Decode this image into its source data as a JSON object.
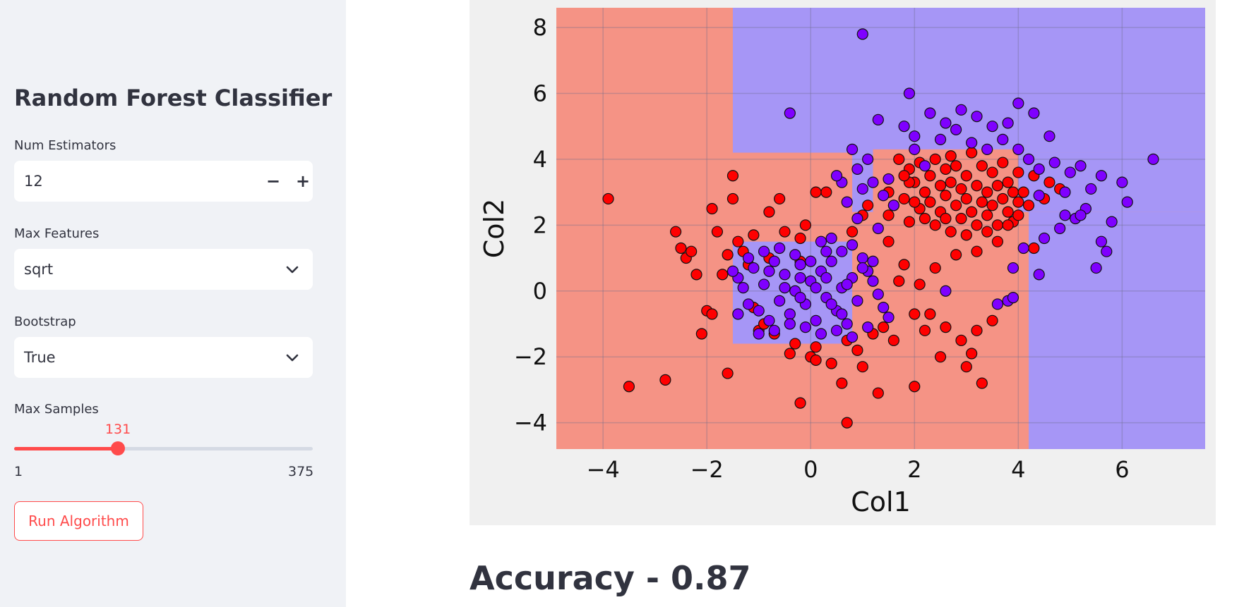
{
  "sidebar": {
    "title": "Random Forest Classifier",
    "num_estimators": {
      "label": "Num Estimators",
      "value": "12",
      "decrement": "−",
      "increment": "+"
    },
    "max_features": {
      "label": "Max Features",
      "value": "sqrt"
    },
    "bootstrap": {
      "label": "Bootstrap",
      "value": "True"
    },
    "max_samples": {
      "label": "Max Samples",
      "value": 131,
      "value_label": "131",
      "min": 1,
      "min_label": "1",
      "max": 375,
      "max_label": "375"
    },
    "run_button": "Run Algorithm"
  },
  "accuracy_text": "Accuracy - 0.87",
  "colors": {
    "accent": "#ff4b4b",
    "region_red": "#f59385",
    "region_blue": "#a696f6",
    "point_red": "#ff0000",
    "point_blue": "#7f00ff",
    "chart_bg": "#f0f0f0"
  },
  "chart_data": {
    "type": "scatter",
    "title": "",
    "xlabel": "Col1",
    "ylabel": "Col2",
    "xlim": [
      -4.9,
      7.6
    ],
    "ylim": [
      -4.8,
      8.6
    ],
    "xticks": [
      -4,
      -2,
      0,
      2,
      4,
      6
    ],
    "xtick_labels": [
      "−4",
      "−2",
      "0",
      "2",
      "4",
      "6"
    ],
    "yticks": [
      -4,
      -2,
      0,
      2,
      4,
      6,
      8
    ],
    "ytick_labels": [
      "−4",
      "−2",
      "0",
      "2",
      "4",
      "6",
      "8"
    ],
    "grid": true,
    "decision_regions": [
      {
        "class": "blue",
        "x": [
          -1.5,
          7.6
        ],
        "y": [
          4.2,
          8.6
        ]
      },
      {
        "class": "blue",
        "x": [
          0.8,
          7.6
        ],
        "y": [
          2.4,
          4.2
        ]
      },
      {
        "class": "blue",
        "x": [
          4.2,
          7.6
        ],
        "y": [
          -4.8,
          2.4
        ]
      },
      {
        "class": "blue",
        "x": [
          -1.5,
          0.8
        ],
        "y": [
          -1.6,
          1.5
        ]
      },
      {
        "class": "red",
        "x": [
          1.2,
          4.0
        ],
        "y": [
          2.0,
          4.3
        ]
      }
    ],
    "series": [
      {
        "name": "",
        "color": "red",
        "points": [
          [
            -3.9,
            2.8
          ],
          [
            -3.5,
            -2.9
          ],
          [
            -2.8,
            -2.7
          ],
          [
            -2.6,
            1.8
          ],
          [
            -2.5,
            1.3
          ],
          [
            -2.4,
            1.0
          ],
          [
            -2.3,
            1.2
          ],
          [
            -2.2,
            0.5
          ],
          [
            -2.0,
            -0.6
          ],
          [
            -2.1,
            -1.3
          ],
          [
            -1.9,
            -0.7
          ],
          [
            -1.9,
            2.5
          ],
          [
            -1.8,
            1.8
          ],
          [
            -1.7,
            0.5
          ],
          [
            -1.6,
            1.1
          ],
          [
            -1.6,
            -2.5
          ],
          [
            -1.5,
            3.5
          ],
          [
            -1.5,
            2.8
          ],
          [
            -1.4,
            1.5
          ],
          [
            -1.3,
            1.2
          ],
          [
            -1.2,
            0.8
          ],
          [
            -1.1,
            -0.5
          ],
          [
            -1.1,
            1.7
          ],
          [
            -1.0,
            -1.2
          ],
          [
            -0.9,
            -1.0
          ],
          [
            -0.8,
            2.4
          ],
          [
            -0.8,
            1.0
          ],
          [
            -0.7,
            -1.3
          ],
          [
            -0.6,
            2.8
          ],
          [
            -0.5,
            1.8
          ],
          [
            -0.4,
            -1.9
          ],
          [
            -0.3,
            -1.6
          ],
          [
            -0.2,
            1.6
          ],
          [
            -0.2,
            0.9
          ],
          [
            -0.1,
            2.0
          ],
          [
            0.0,
            -2.0
          ],
          [
            0.1,
            -2.1
          ],
          [
            0.1,
            -1.7
          ],
          [
            0.3,
            3.0
          ],
          [
            0.4,
            -2.2
          ],
          [
            0.6,
            -2.8
          ],
          [
            0.7,
            -1.5
          ],
          [
            0.8,
            1.8
          ],
          [
            0.9,
            -1.8
          ],
          [
            1.0,
            2.3
          ],
          [
            1.0,
            -2.3
          ],
          [
            1.1,
            2.6
          ],
          [
            1.2,
            -1.3
          ],
          [
            1.3,
            -3.1
          ],
          [
            1.4,
            -1.1
          ],
          [
            1.5,
            1.5
          ],
          [
            1.6,
            -1.5
          ],
          [
            1.7,
            0.3
          ],
          [
            1.8,
            0.8
          ],
          [
            1.9,
            2.1
          ],
          [
            2.0,
            -0.7
          ],
          [
            2.1,
            0.2
          ],
          [
            2.2,
            -1.2
          ],
          [
            2.3,
            -0.7
          ],
          [
            2.4,
            0.7
          ],
          [
            2.5,
            -2.0
          ],
          [
            2.6,
            -1.1
          ],
          [
            2.8,
            1.1
          ],
          [
            2.9,
            -1.5
          ],
          [
            3.0,
            -2.3
          ],
          [
            3.1,
            -1.9
          ],
          [
            3.2,
            -1.2
          ],
          [
            3.3,
            -2.8
          ],
          [
            3.5,
            -0.9
          ],
          [
            -0.2,
            -3.4
          ],
          [
            0.7,
            -4.0
          ],
          [
            0.1,
            3.0
          ],
          [
            1.5,
            2.3
          ],
          [
            2.0,
            -2.9
          ],
          [
            1.7,
            4.0
          ],
          [
            1.9,
            3.7
          ],
          [
            2.0,
            3.3
          ],
          [
            2.1,
            3.9
          ],
          [
            2.2,
            3.0
          ],
          [
            2.3,
            2.7
          ],
          [
            2.3,
            3.5
          ],
          [
            2.4,
            4.0
          ],
          [
            2.5,
            3.2
          ],
          [
            2.5,
            2.4
          ],
          [
            2.6,
            3.7
          ],
          [
            2.6,
            2.9
          ],
          [
            2.7,
            3.3
          ],
          [
            2.7,
            4.1
          ],
          [
            2.8,
            2.6
          ],
          [
            2.8,
            3.8
          ],
          [
            2.9,
            3.1
          ],
          [
            2.9,
            2.2
          ],
          [
            3.0,
            3.5
          ],
          [
            3.0,
            2.8
          ],
          [
            3.1,
            4.2
          ],
          [
            3.1,
            2.4
          ],
          [
            3.2,
            3.2
          ],
          [
            3.2,
            2.0
          ],
          [
            3.3,
            3.8
          ],
          [
            3.3,
            2.7
          ],
          [
            3.4,
            3.0
          ],
          [
            3.4,
            2.3
          ],
          [
            3.5,
            3.6
          ],
          [
            3.5,
            2.6
          ],
          [
            3.6,
            3.2
          ],
          [
            3.6,
            2.0
          ],
          [
            3.7,
            3.9
          ],
          [
            3.7,
            2.8
          ],
          [
            3.8,
            3.3
          ],
          [
            3.8,
            2.4
          ],
          [
            3.9,
            3.0
          ],
          [
            3.9,
            2.1
          ],
          [
            4.0,
            3.6
          ],
          [
            4.0,
            2.7
          ],
          [
            2.1,
            2.5
          ],
          [
            2.2,
            2.2
          ],
          [
            2.4,
            2.0
          ],
          [
            2.6,
            2.2
          ],
          [
            1.8,
            2.8
          ],
          [
            1.9,
            3.3
          ],
          [
            2.0,
            2.7
          ],
          [
            2.7,
            1.8
          ],
          [
            3.0,
            1.7
          ],
          [
            3.2,
            1.2
          ],
          [
            3.4,
            1.8
          ],
          [
            3.6,
            1.5
          ],
          [
            3.8,
            2.0
          ],
          [
            4.0,
            2.3
          ],
          [
            4.1,
            3.0
          ],
          [
            4.2,
            2.6
          ],
          [
            4.3,
            3.5
          ],
          [
            1.5,
            3.0
          ],
          [
            1.6,
            2.6
          ],
          [
            1.8,
            3.5
          ],
          [
            4.3,
            1.3
          ],
          [
            4.5,
            2.8
          ],
          [
            4.6,
            3.3
          ],
          [
            4.8,
            3.1
          ]
        ]
      },
      {
        "name": "",
        "color": "blue",
        "points": [
          [
            1.0,
            7.8
          ],
          [
            1.9,
            6.0
          ],
          [
            -0.4,
            5.4
          ],
          [
            1.3,
            5.2
          ],
          [
            1.8,
            5.0
          ],
          [
            2.0,
            4.7
          ],
          [
            2.3,
            5.4
          ],
          [
            2.6,
            5.1
          ],
          [
            2.9,
            5.5
          ],
          [
            3.2,
            5.3
          ],
          [
            3.5,
            5.0
          ],
          [
            3.8,
            5.1
          ],
          [
            4.0,
            5.7
          ],
          [
            4.3,
            5.4
          ],
          [
            4.6,
            4.7
          ],
          [
            5.2,
            3.8
          ],
          [
            5.4,
            3.1
          ],
          [
            5.6,
            3.5
          ],
          [
            5.8,
            2.1
          ],
          [
            6.0,
            3.3
          ],
          [
            6.6,
            4.0
          ],
          [
            6.1,
            2.7
          ],
          [
            5.6,
            1.5
          ],
          [
            5.5,
            0.7
          ],
          [
            4.4,
            0.5
          ],
          [
            4.1,
            1.3
          ],
          [
            3.9,
            0.7
          ],
          [
            3.8,
            -0.3
          ],
          [
            3.6,
            -0.4
          ],
          [
            2.6,
            0.0
          ],
          [
            2.0,
            4.3
          ],
          [
            2.2,
            3.8
          ],
          [
            2.5,
            4.6
          ],
          [
            2.8,
            4.9
          ],
          [
            3.1,
            4.5
          ],
          [
            3.4,
            4.3
          ],
          [
            3.7,
            4.6
          ],
          [
            4.0,
            4.3
          ],
          [
            4.2,
            4.0
          ],
          [
            4.4,
            3.7
          ],
          [
            4.7,
            3.9
          ],
          [
            4.9,
            2.3
          ],
          [
            5.0,
            3.6
          ],
          [
            5.1,
            2.2
          ],
          [
            5.3,
            2.5
          ],
          [
            5.7,
            1.2
          ],
          [
            4.8,
            1.9
          ],
          [
            4.5,
            1.6
          ],
          [
            1.1,
            4.0
          ],
          [
            0.9,
            3.7
          ],
          [
            0.8,
            4.3
          ],
          [
            0.6,
            3.3
          ],
          [
            0.5,
            3.5
          ],
          [
            1.0,
            3.1
          ],
          [
            1.2,
            3.3
          ],
          [
            1.5,
            3.4
          ],
          [
            0.7,
            2.7
          ],
          [
            0.9,
            2.2
          ],
          [
            1.3,
            1.9
          ],
          [
            1.6,
            2.6
          ],
          [
            1.4,
            2.9
          ],
          [
            0.2,
            1.5
          ],
          [
            0.4,
            1.6
          ],
          [
            0.6,
            1.2
          ],
          [
            0.8,
            1.4
          ],
          [
            1.0,
            1.0
          ],
          [
            1.1,
            0.6
          ],
          [
            1.2,
            0.3
          ],
          [
            1.3,
            -0.1
          ],
          [
            1.4,
            -0.5
          ],
          [
            1.5,
            -0.8
          ],
          [
            -1.4,
            0.4
          ],
          [
            -1.3,
            0.1
          ],
          [
            -1.2,
            -0.4
          ],
          [
            -1.1,
            0.7
          ],
          [
            -1.0,
            -0.6
          ],
          [
            -0.9,
            0.2
          ],
          [
            -0.8,
            -0.9
          ],
          [
            -0.7,
            0.9
          ],
          [
            -0.6,
            -0.3
          ],
          [
            -0.5,
            0.5
          ],
          [
            -0.4,
            -0.7
          ],
          [
            -0.3,
            0.0
          ],
          [
            -0.2,
            0.8
          ],
          [
            -0.1,
            -0.4
          ],
          [
            0.0,
            0.3
          ],
          [
            0.1,
            -0.9
          ],
          [
            0.2,
            0.6
          ],
          [
            0.3,
            -0.2
          ],
          [
            0.4,
            0.9
          ],
          [
            0.5,
            -0.6
          ],
          [
            0.6,
            0.1
          ],
          [
            0.7,
            -1.0
          ],
          [
            0.8,
            0.4
          ],
          [
            0.9,
            -0.3
          ],
          [
            1.0,
            0.7
          ],
          [
            -1.2,
            1.0
          ],
          [
            -0.9,
            1.2
          ],
          [
            -0.6,
            1.3
          ],
          [
            -0.3,
            1.1
          ],
          [
            0.0,
            0.9
          ],
          [
            0.3,
            1.2
          ],
          [
            -1.0,
            -1.3
          ],
          [
            -0.7,
            -1.2
          ],
          [
            -0.4,
            -1.0
          ],
          [
            -0.1,
            -1.1
          ],
          [
            0.2,
            -1.3
          ],
          [
            0.5,
            -1.2
          ],
          [
            0.8,
            -1.4
          ],
          [
            1.1,
            -1.1
          ],
          [
            -0.5,
            0.1
          ],
          [
            -0.2,
            -0.2
          ],
          [
            0.1,
            0.1
          ],
          [
            0.4,
            -0.4
          ],
          [
            0.7,
            0.2
          ],
          [
            -1.4,
            -0.7
          ],
          [
            -1.5,
            0.6
          ],
          [
            0.3,
            0.4
          ],
          [
            0.6,
            -0.7
          ],
          [
            -0.8,
            0.6
          ],
          [
            -0.2,
            0.4
          ],
          [
            1.2,
            0.9
          ],
          [
            4.4,
            2.9
          ],
          [
            4.9,
            3.0
          ],
          [
            5.2,
            2.3
          ],
          [
            3.9,
            -0.2
          ]
        ]
      }
    ]
  }
}
